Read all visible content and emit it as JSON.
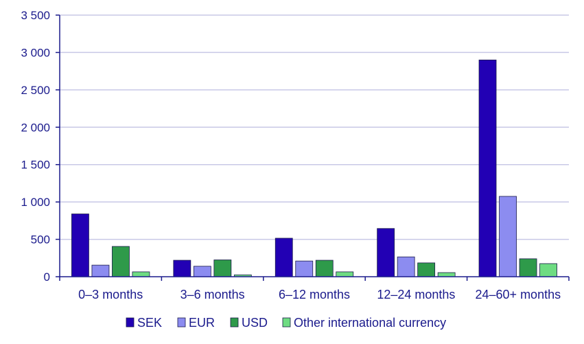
{
  "chart_data": {
    "type": "bar",
    "title": "",
    "xlabel": "",
    "ylabel": "",
    "categories": [
      "0–3 months",
      "3–6 months",
      "6–12 months",
      "12–24 months",
      "24–60+ months"
    ],
    "series": [
      {
        "name": "SEK",
        "color": "#2200b4",
        "values": [
          840,
          220,
          515,
          645,
          2900
        ]
      },
      {
        "name": "EUR",
        "color": "#8c8cf0",
        "values": [
          155,
          140,
          210,
          265,
          1075
        ]
      },
      {
        "name": "USD",
        "color": "#2e9a4a",
        "values": [
          405,
          225,
          220,
          185,
          240
        ]
      },
      {
        "name": "Other international currency",
        "color": "#6edc82",
        "values": [
          65,
          25,
          65,
          55,
          175
        ]
      }
    ],
    "ylim": [
      0,
      3500
    ],
    "yticks": [
      0,
      500,
      1000,
      1500,
      2000,
      2500,
      3000,
      3500
    ],
    "ytick_labels": [
      "0",
      "500",
      "1 000",
      "1 500",
      "2 000",
      "2 500",
      "3 000",
      "3 500"
    ],
    "grid": true,
    "legend_position": "bottom"
  }
}
